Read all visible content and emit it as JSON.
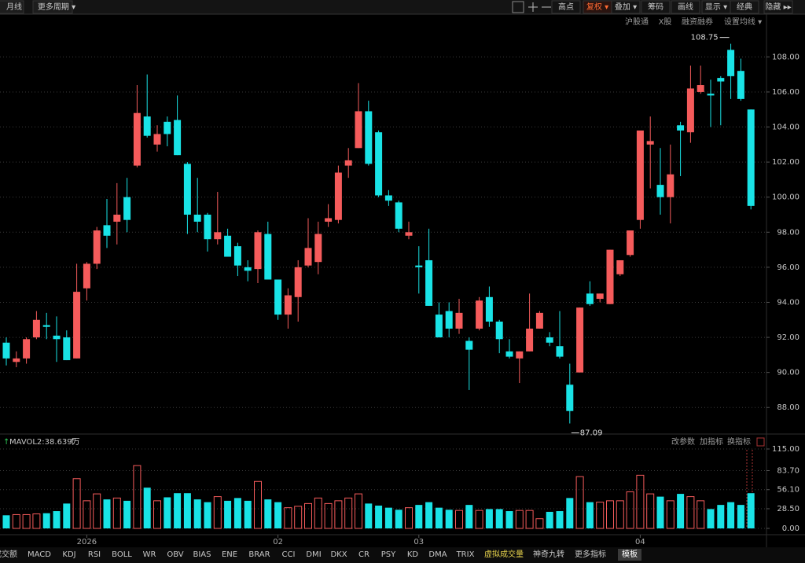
{
  "toolbar_left": [
    "月线",
    "更多周期 ▾"
  ],
  "toolbar_right": [
    "高点",
    "复权 ▾",
    "叠加 ▾",
    "筹码",
    "画线",
    "显示 ▾",
    "经典",
    "隐藏 ▸▸"
  ],
  "sub_toolbar": [
    "沪股通",
    "X股",
    "融资融券",
    "设置均线 ▾"
  ],
  "volume_tools": [
    "改参数",
    "加指标",
    "换指标"
  ],
  "tabs": [
    "成交额",
    "MACD",
    "KDJ",
    "RSI",
    "BOLL",
    "WR",
    "OBV",
    "BIAS",
    "ENE",
    "BRAR",
    "CCI",
    "DMI",
    "DKX",
    "CR",
    "PSY",
    "KD",
    "DMA",
    "TRIX",
    "虚拟成交量",
    "神奇九转",
    "更多指标",
    "模板"
  ],
  "chart_data": [
    {
      "type": "candlestick",
      "categories": [
        null,
        null,
        null,
        null,
        null,
        null,
        null,
        null,
        "2026",
        null,
        null,
        null,
        null,
        null,
        null,
        null,
        null,
        null,
        null,
        null,
        null,
        null,
        null,
        null,
        null,
        null,
        null,
        "02",
        null,
        null,
        null,
        null,
        null,
        null,
        null,
        null,
        null,
        null,
        null,
        null,
        null,
        "03",
        null,
        null,
        null,
        null,
        null,
        null,
        null,
        null,
        null,
        null,
        null,
        null,
        null,
        null,
        null,
        null,
        null,
        null,
        null,
        null,
        null,
        "04",
        null,
        null,
        null,
        null,
        null,
        null,
        null,
        null,
        null,
        null,
        null
      ],
      "open": [
        91.7,
        90.6,
        90.8,
        92.0,
        92.7,
        92.1,
        92.0,
        90.8,
        94.8,
        96.2,
        98.4,
        98.6,
        100.0,
        101.8,
        104.6,
        103.0,
        104.3,
        104.4,
        101.9,
        99.0,
        99.0,
        97.6,
        97.8,
        97.2,
        96.0,
        95.9,
        97.9,
        95.3,
        93.3,
        94.3,
        96.1,
        96.3,
        98.6,
        98.7,
        101.8,
        102.8,
        104.9,
        103.7,
        100.1,
        99.7,
        97.8,
        96.1,
        96.4,
        93.3,
        93.5,
        92.5,
        91.8,
        92.5,
        94.3,
        92.9,
        91.2,
        90.8,
        91.2,
        92.5,
        92.0,
        91.5,
        89.3,
        90.0,
        94.5,
        94.2,
        93.9,
        95.6,
        96.7,
        98.7,
        103.0,
        100.7,
        100.0,
        104.1,
        103.7,
        106.0,
        105.9,
        106.8,
        108.4,
        107.2,
        105.0
      ],
      "high": [
        92.0,
        91.2,
        92.0,
        93.5,
        93.4,
        93.2,
        92.4,
        96.2,
        96.3,
        98.3,
        99.9,
        100.8,
        101.1,
        106.4,
        107.0,
        104.1,
        104.6,
        105.8,
        102.0,
        101.1,
        99.1,
        100.3,
        98.2,
        97.4,
        96.4,
        98.1,
        98.6,
        95.3,
        94.8,
        96.4,
        98.8,
        98.6,
        99.6,
        101.8,
        102.8,
        106.5,
        105.5,
        103.8,
        100.4,
        99.8,
        98.6,
        97.2,
        98.2,
        94.0,
        94.0,
        94.2,
        92.0,
        94.3,
        94.9,
        93.0,
        91.9,
        91.2,
        94.5,
        93.5,
        92.3,
        93.5,
        90.5,
        93.7,
        95.2,
        94.5,
        97.0,
        96.4,
        98.0,
        103.8,
        104.6,
        102.8,
        103.0,
        104.3,
        107.5,
        107.5,
        106.7,
        106.9,
        108.75,
        107.9,
        105.0
      ],
      "low": [
        90.4,
        90.3,
        90.5,
        91.9,
        91.9,
        90.6,
        90.7,
        90.8,
        94.1,
        95.9,
        97.1,
        97.3,
        98.0,
        101.7,
        103.4,
        102.6,
        102.9,
        102.4,
        97.9,
        98.0,
        96.9,
        97.3,
        96.6,
        95.5,
        95.2,
        95.1,
        95.3,
        93.0,
        92.5,
        92.9,
        96.0,
        95.6,
        98.3,
        98.5,
        101.1,
        102.8,
        101.8,
        100.0,
        99.5,
        98.0,
        97.6,
        94.5,
        93.8,
        92.0,
        92.0,
        92.2,
        89.0,
        92.4,
        92.6,
        91.1,
        90.8,
        89.4,
        91.2,
        92.5,
        91.5,
        90.8,
        87.09,
        90.0,
        93.8,
        94.0,
        93.9,
        95.5,
        96.6,
        98.2,
        100.5,
        99.0,
        98.5,
        101.2,
        103.1,
        105.9,
        104.0,
        104.1,
        105.6,
        105.5,
        99.3
      ],
      "close": [
        90.8,
        90.8,
        91.9,
        93.0,
        92.6,
        91.9,
        90.7,
        94.6,
        96.2,
        98.1,
        97.8,
        99.0,
        98.7,
        104.8,
        103.5,
        103.6,
        103.6,
        102.4,
        99.0,
        98.6,
        97.6,
        98.0,
        96.6,
        96.1,
        95.8,
        98.0,
        95.3,
        93.3,
        94.4,
        96.0,
        97.1,
        97.9,
        98.8,
        101.4,
        102.1,
        104.9,
        101.9,
        100.1,
        99.8,
        98.2,
        98.0,
        96.0,
        93.8,
        92.0,
        92.5,
        93.4,
        91.3,
        94.1,
        92.9,
        91.9,
        90.9,
        91.2,
        92.5,
        93.4,
        91.7,
        90.9,
        87.8,
        93.7,
        93.9,
        94.5,
        97.0,
        96.4,
        98.1,
        103.8,
        103.2,
        100.0,
        101.3,
        103.8,
        106.2,
        106.4,
        105.8,
        106.6,
        106.9,
        105.6,
        99.5
      ],
      "up_color": "#f55b5b",
      "down_color": "#19e3e6",
      "ylim": [
        86.8,
        109.9
      ],
      "yticks": [
        {
          "value": 88,
          "label": "88.00"
        },
        {
          "value": 90,
          "label": "90.00"
        },
        {
          "value": 92,
          "label": "92.00"
        },
        {
          "value": 94,
          "label": "94.00"
        },
        {
          "value": 96,
          "label": "96.00"
        },
        {
          "value": 98,
          "label": "98.00"
        },
        {
          "value": 100,
          "label": "100.00"
        },
        {
          "value": 102,
          "label": "102.00"
        },
        {
          "value": 104,
          "label": "104.00"
        },
        {
          "value": 106,
          "label": "106.00"
        },
        {
          "value": 108,
          "label": "108.00"
        }
      ],
      "grid": true,
      "max_label": "108.75",
      "min_label": "87.09"
    },
    {
      "type": "bar",
      "title": "MAVOL2:38.639万",
      "values": [
        19,
        20,
        20,
        21,
        22,
        25,
        36,
        72,
        40,
        50,
        42,
        44,
        40,
        91,
        59,
        40,
        45,
        51,
        51,
        42,
        38,
        46,
        40,
        44,
        40,
        68,
        42,
        38,
        30,
        32,
        36,
        44,
        36,
        40,
        44,
        50,
        36,
        33,
        30,
        27,
        30,
        34,
        38,
        30,
        27,
        26,
        34,
        26,
        28,
        28,
        25,
        26,
        26,
        14,
        24,
        25,
        44,
        75,
        38,
        38,
        40,
        40,
        53,
        77,
        50,
        46,
        40,
        50,
        46,
        40,
        28,
        34,
        38,
        34,
        51
      ],
      "ylim": [
        0,
        115
      ],
      "yticks": [
        {
          "value": 0,
          "label": "0.00"
        },
        {
          "value": 28.5,
          "label": "28.50"
        },
        {
          "value": 56.1,
          "label": "56.10"
        },
        {
          "value": 83.7,
          "label": "83.70"
        },
        {
          "value": 115,
          "label": "115.00"
        }
      ]
    }
  ]
}
